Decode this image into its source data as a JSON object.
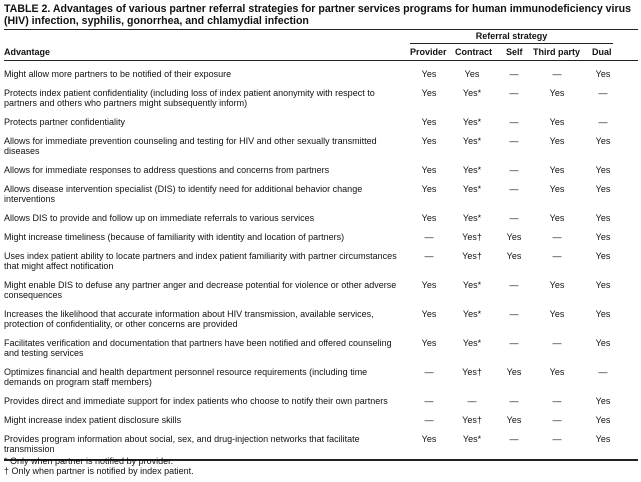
{
  "title": "TABLE 2. Advantages of various partner referral strategies for partner services programs for human immunodeficiency virus (HIV) infection, syphilis, gonorrhea, and chlamydial infection",
  "group_header": "Referral strategy",
  "columns": [
    "Advantage",
    "Provider",
    "Contract",
    "Self",
    "Third party",
    "Dual"
  ],
  "rows": [
    [
      "Might allow more partners to be notified of their exposure",
      "Yes",
      "Yes",
      "—",
      "—",
      "Yes"
    ],
    [
      "Protects index patient confidentiality (including loss of index patient anonymity with respect to partners and others who partners might subsequently inform)",
      "Yes",
      "Yes*",
      "—",
      "Yes",
      "—"
    ],
    [
      "Protects partner confidentiality",
      "Yes",
      "Yes*",
      "—",
      "Yes",
      "—"
    ],
    [
      "Allows for immediate prevention counseling and testing for HIV and other sexually transmitted diseases",
      "Yes",
      "Yes*",
      "—",
      "Yes",
      "Yes"
    ],
    [
      "Allows for immediate responses to address questions and concerns from partners",
      "Yes",
      "Yes*",
      "—",
      "Yes",
      "Yes"
    ],
    [
      "Allows disease intervention specialist (DIS) to identify need for additional behavior change interventions",
      "Yes",
      "Yes*",
      "—",
      "Yes",
      "Yes"
    ],
    [
      "Allows DIS to provide and follow up on immediate referrals to various services",
      "Yes",
      "Yes*",
      "—",
      "Yes",
      "Yes"
    ],
    [
      "Might increase timeliness (because of familiarity with identity and location of partners)",
      "—",
      "Yes†",
      "Yes",
      "—",
      "Yes"
    ],
    [
      "Uses index patient ability to locate partners and index patient familiarity with partner circumstances that might affect notification",
      "—",
      "Yes†",
      "Yes",
      "—",
      "Yes"
    ],
    [
      "Might enable DIS to defuse any partner anger and decrease potential for violence or other adverse consequences",
      "Yes",
      "Yes*",
      "—",
      "Yes",
      "Yes"
    ],
    [
      "Increases the likelihood that accurate information about HIV transmission, available services, protection of confidentiality, or other concerns are provided",
      "Yes",
      "Yes*",
      "—",
      "Yes",
      "Yes"
    ],
    [
      "Facilitates verification and documentation that partners have been notified and offered counseling and testing services",
      "Yes",
      "Yes*",
      "—",
      "—",
      "Yes"
    ],
    [
      "Optimizes financial and health department personnel resource requirements (including time demands on program staff members)",
      "—",
      "Yes†",
      "Yes",
      "Yes",
      "—"
    ],
    [
      "Provides direct and immediate support for index patients who choose to notify their own partners",
      "—",
      "—",
      "—",
      "—",
      "Yes"
    ],
    [
      "Might increase index patient disclosure skills",
      "—",
      "Yes†",
      "Yes",
      "—",
      "Yes"
    ],
    [
      "Provides program information about social, sex, and drug-injection networks that facilitate transmission",
      "Yes",
      "Yes*",
      "—",
      "—",
      "Yes"
    ]
  ],
  "footnotes": [
    "* Only when partner is notified by provider.",
    "† Only when partner is notified by index patient."
  ]
}
